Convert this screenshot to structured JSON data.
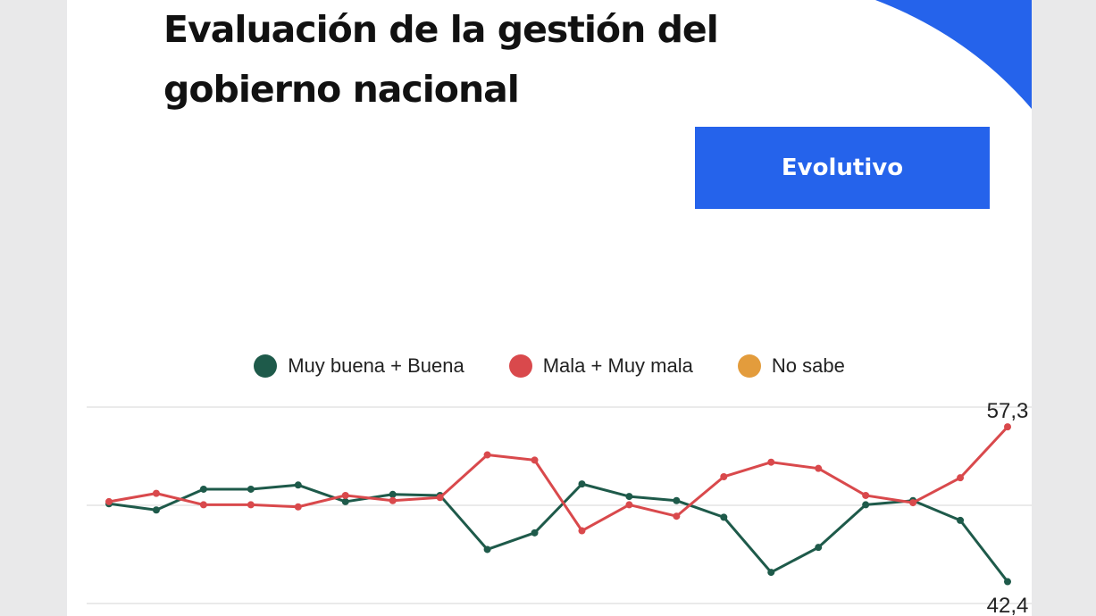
{
  "header": {
    "title": "Evaluación de la gestión del gobierno nacional",
    "button_label": "Evolutivo"
  },
  "colors": {
    "accent": "#2563eb",
    "series_positive": "#1e5a4a",
    "series_negative": "#d9494c",
    "series_unsure": "#e39c3c"
  },
  "chart_data": {
    "type": "line",
    "ylim": [
      40.3,
      59.2
    ],
    "grid": true,
    "legend_position": "top-center",
    "series": [
      {
        "name": "Muy buena + Buena",
        "values": [
          49.9,
          49.3,
          51.3,
          51.3,
          51.7,
          50.1,
          50.8,
          50.7,
          45.5,
          47.1,
          51.8,
          50.6,
          50.2,
          48.6,
          43.3,
          45.7,
          49.8,
          50.2,
          48.3,
          42.4
        ]
      },
      {
        "name": "Mala + Muy mala",
        "values": [
          50.1,
          50.9,
          49.8,
          49.8,
          49.6,
          50.7,
          50.2,
          50.5,
          54.6,
          54.1,
          47.3,
          49.8,
          48.7,
          52.5,
          53.9,
          53.3,
          50.7,
          50.0,
          52.4,
          57.3
        ]
      },
      {
        "name": "No sabe",
        "values": []
      }
    ],
    "annotations": [
      {
        "series": 1,
        "point": 19,
        "text": "57,3",
        "position": "above"
      },
      {
        "series": 0,
        "point": 19,
        "text": "42,4",
        "position": "below"
      }
    ]
  }
}
